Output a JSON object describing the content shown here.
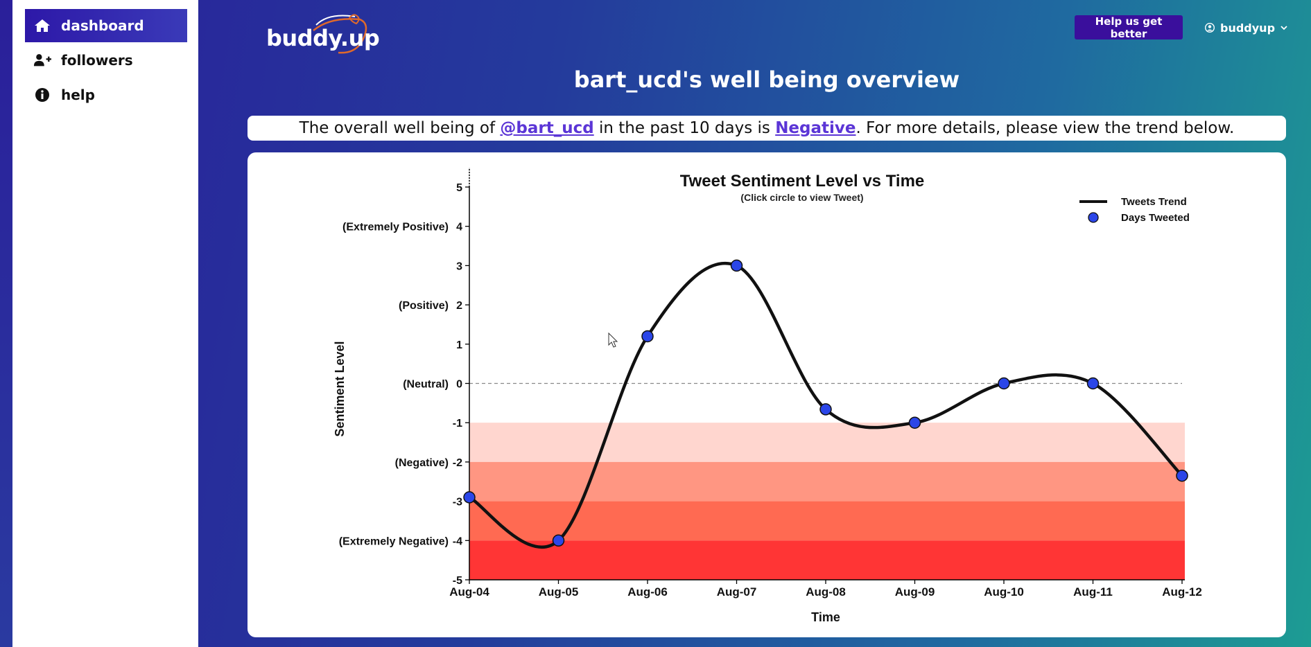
{
  "sidebar": {
    "items": [
      {
        "label": "dashboard",
        "icon": "home-icon",
        "active": true
      },
      {
        "label": "followers",
        "icon": "user-plus-icon",
        "active": false
      },
      {
        "label": "help",
        "icon": "info-icon",
        "active": false
      }
    ]
  },
  "header": {
    "logo_text": "buddy.up",
    "help_button": "Help us get better",
    "user_name": "buddyup"
  },
  "page": {
    "title": "bart_ucd's well being overview"
  },
  "summary": {
    "prefix": "The overall well being of ",
    "handle": "@bart_ucd",
    "middle": " in the past 10 days is ",
    "status": "Negative",
    "suffix": ". For more details, please view the trend below."
  },
  "colors": {
    "accent": "#3a0f9c",
    "link": "#5b35d6",
    "point_fill": "#2b46e8",
    "band_light": "#ffd6cf",
    "band_mid": "#ff9682",
    "band_dark": "#ff6a52",
    "band_darkest": "#ff3535"
  },
  "chart_data": {
    "type": "line",
    "title": "Tweet Sentiment Level vs Time",
    "subtitle": "(Click circle to view Tweet)",
    "xlabel": "Time",
    "ylabel": "Sentiment Level",
    "categories": [
      "Aug-04",
      "Aug-05",
      "Aug-06",
      "Aug-07",
      "Aug-08",
      "Aug-09",
      "Aug-10",
      "Aug-11",
      "Aug-12"
    ],
    "series": [
      {
        "name": "Tweets Trend",
        "values": [
          -2.9,
          -4.0,
          1.2,
          3.0,
          -0.66,
          -1.0,
          0.0,
          0.0,
          -2.35
        ]
      }
    ],
    "points_legend": "Days Tweeted",
    "ylim": [
      -5,
      5
    ],
    "yticks": [
      -5,
      -4,
      -3,
      -2,
      -1,
      0,
      1,
      2,
      3,
      4,
      5
    ],
    "y_category_labels": [
      {
        "y": 4,
        "label": "(Extremely Positive)"
      },
      {
        "y": 2,
        "label": "(Positive)"
      },
      {
        "y": 0,
        "label": "(Neutral)"
      },
      {
        "y": -2,
        "label": "(Negative)"
      },
      {
        "y": -4,
        "label": "(Extremely Negative)"
      }
    ],
    "bands": [
      {
        "from": -1,
        "to": -2,
        "color_key": "band_light"
      },
      {
        "from": -2,
        "to": -3,
        "color_key": "band_mid"
      },
      {
        "from": -3,
        "to": -4,
        "color_key": "band_dark"
      },
      {
        "from": -4,
        "to": -5,
        "color_key": "band_darkest"
      }
    ],
    "reference_line": 0,
    "legend_position": "top-right"
  }
}
